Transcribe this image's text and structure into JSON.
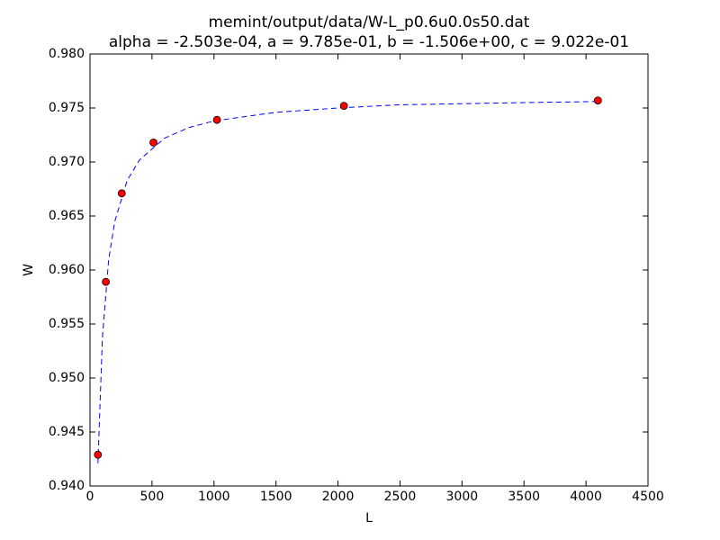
{
  "chart_data": {
    "type": "scatter",
    "title": "memint/output/data/W-L_p0.6u0.0s50.dat",
    "subtitle": "alpha = -2.503e-04, a = 9.785e-01, b = -1.506e+00, c = 9.022e-01",
    "x_label": "L",
    "y_label": "W",
    "xlim": [
      0,
      4500
    ],
    "xticks": [
      0,
      500,
      1000,
      1500,
      2000,
      2500,
      3000,
      3500,
      4000,
      4500
    ],
    "ylim": [
      0.94,
      0.98
    ],
    "yticks": [
      {
        "value": 0.94,
        "label": "0.940"
      },
      {
        "value": 0.945,
        "label": "0.945"
      },
      {
        "value": 0.95,
        "label": "0.950"
      },
      {
        "value": 0.955,
        "label": "0.955"
      },
      {
        "value": 0.96,
        "label": "0.960"
      },
      {
        "value": 0.965,
        "label": "0.965"
      },
      {
        "value": 0.97,
        "label": "0.970"
      },
      {
        "value": 0.975,
        "label": "0.975"
      },
      {
        "value": 0.98,
        "label": "0.980"
      }
    ],
    "series": [
      {
        "type": "line",
        "color": "#0000ff",
        "linestyle": "dashed",
        "x": [
          64,
          100,
          150,
          200,
          300,
          400,
          600,
          800,
          1000,
          1500,
          2000,
          2500,
          3000,
          3500,
          4096
        ],
        "values": [
          0.9421,
          0.9537,
          0.9609,
          0.9645,
          0.9683,
          0.9702,
          0.9722,
          0.9732,
          0.9738,
          0.9746,
          0.975,
          0.9753,
          0.9754,
          0.9755,
          0.9756
        ]
      },
      {
        "type": "scatter",
        "color": "#ff0000",
        "x": [
          64,
          128,
          256,
          512,
          1024,
          2048,
          4096
        ],
        "values": [
          0.9429,
          0.9589,
          0.9671,
          0.9718,
          0.9739,
          0.9752,
          0.9757
        ]
      }
    ]
  }
}
